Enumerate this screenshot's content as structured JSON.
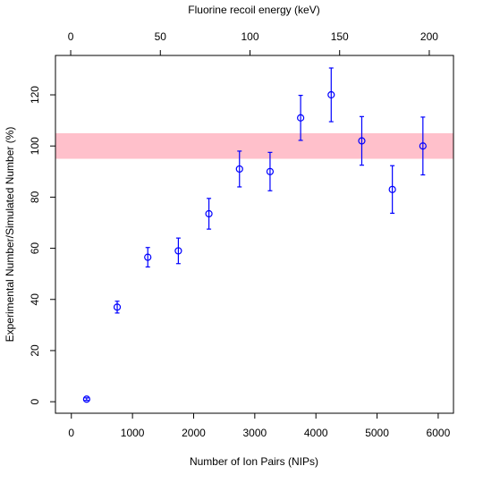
{
  "chart_data": {
    "type": "scatter",
    "top_axis_label": "Fluorine recoil energy (keV)",
    "x_label": "Number of Ion Pairs (NIPs)",
    "y_label": "Experimental Number/Simulated Number (%)",
    "x": [
      250,
      750,
      1250,
      1750,
      2250,
      2750,
      3250,
      3750,
      4250,
      4750,
      5250,
      5750
    ],
    "values": [
      1,
      37,
      56.5,
      59,
      73.5,
      91,
      90,
      111,
      120,
      102,
      83,
      100
    ],
    "errors": [
      0.5,
      2.3,
      3.8,
      5,
      6,
      7,
      7.5,
      8.8,
      10.5,
      9.5,
      9.3,
      11.3
    ],
    "color": "#0000ff",
    "band": {
      "ymin": 95,
      "ymax": 105,
      "color": "#ffc0cb"
    },
    "xlim": [
      -260,
      6250
    ],
    "xticks": [
      0,
      1000,
      2000,
      3000,
      4000,
      5000,
      6000
    ],
    "x2lim": [
      -8.5,
      213.5
    ],
    "x2ticks": [
      0,
      50,
      100,
      150,
      200
    ],
    "ylim": [
      -4.5,
      135.4
    ],
    "yticks": [
      0,
      20,
      40,
      60,
      80,
      100,
      120
    ]
  }
}
